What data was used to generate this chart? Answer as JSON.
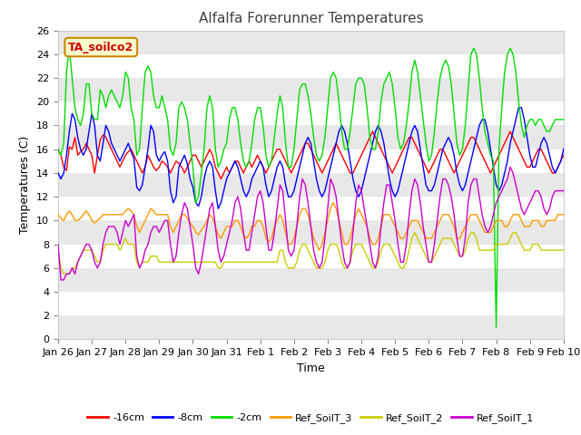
{
  "title": "Alfalfa Forerunner Temperatures",
  "xlabel": "Time",
  "ylabel": "Temperatures (C)",
  "annotation": "TA_soilco2",
  "ylim": [
    0,
    26
  ],
  "yticks": [
    0,
    2,
    4,
    6,
    8,
    10,
    12,
    14,
    16,
    18,
    20,
    22,
    24,
    26
  ],
  "series": {
    "neg16cm": {
      "label": "-16cm",
      "color": "#ff0000"
    },
    "neg8cm": {
      "label": "-8cm",
      "color": "#0000ff"
    },
    "neg2cm": {
      "label": "-2cm",
      "color": "#00dd00"
    },
    "ref3": {
      "label": "Ref_SoilT_3",
      "color": "#ff9900"
    },
    "ref2": {
      "label": "Ref_SoilT_2",
      "color": "#cccc00"
    },
    "ref1": {
      "label": "Ref_SoilT_1",
      "color": "#cc00cc"
    }
  },
  "xlabels": [
    "Jan 26",
    "Jan 27",
    "Jan 28",
    "Jan 29",
    "Jan 30",
    "Jan 31",
    "Feb 1",
    "Feb 2",
    "Feb 3",
    "Feb 4",
    "Feb 5",
    "Feb 6",
    "Feb 7",
    "Feb 8",
    "Feb 9",
    "Feb 10"
  ],
  "neg16cm": [
    16.0,
    15.5,
    14.5,
    14.2,
    16.2,
    16.0,
    17.0,
    15.5,
    15.8,
    16.0,
    16.5,
    16.0,
    15.5,
    14.0,
    15.5,
    16.8,
    17.2,
    17.0,
    16.5,
    16.0,
    15.5,
    15.0,
    14.5,
    15.0,
    15.5,
    15.8,
    16.0,
    15.5,
    15.0,
    14.5,
    14.0,
    14.5,
    15.5,
    15.0,
    14.5,
    14.2,
    14.5,
    15.0,
    14.8,
    14.5,
    14.0,
    14.5,
    15.0,
    14.8,
    14.5,
    14.0,
    14.5,
    15.0,
    15.5,
    15.5,
    15.0,
    14.5,
    15.0,
    15.5,
    16.0,
    15.5,
    14.5,
    14.0,
    13.5,
    14.0,
    14.5,
    14.0,
    14.5,
    15.0,
    15.0,
    14.5,
    14.0,
    14.5,
    15.0,
    14.5,
    15.0,
    15.5,
    15.0,
    14.5,
    14.0,
    14.5,
    15.0,
    15.5,
    16.0,
    16.0,
    15.5,
    15.0,
    14.5,
    14.0,
    14.5,
    15.0,
    15.5,
    16.0,
    16.5,
    16.5,
    16.0,
    15.5,
    15.0,
    14.5,
    14.0,
    14.5,
    15.0,
    15.5,
    16.0,
    16.5,
    16.0,
    15.5,
    15.0,
    14.5,
    14.0,
    14.0,
    14.5,
    15.0,
    15.5,
    16.0,
    16.5,
    17.0,
    17.5,
    17.0,
    16.5,
    16.0,
    15.5,
    15.0,
    14.5,
    14.0,
    14.5,
    15.0,
    15.5,
    16.0,
    16.5,
    17.0,
    17.0,
    16.5,
    16.0,
    15.5,
    15.0,
    14.5,
    14.0,
    14.5,
    15.0,
    15.5,
    16.0,
    16.0,
    15.5,
    15.0,
    14.5,
    14.0,
    14.5,
    15.0,
    15.5,
    16.0,
    16.5,
    17.0,
    17.0,
    16.5,
    16.0,
    15.5,
    15.0,
    14.5,
    14.0,
    14.5,
    15.0,
    15.5,
    16.0,
    16.5,
    17.0,
    17.5,
    17.0,
    16.5,
    16.0,
    15.5,
    15.0,
    14.5,
    14.5,
    15.0,
    15.5,
    16.0,
    16.0,
    15.5,
    15.0,
    14.5,
    14.0,
    14.0,
    14.5,
    15.0,
    15.5,
    16.0,
    16.0,
    15.5,
    15.0,
    14.5,
    14.0
  ],
  "neg8cm": [
    14.0,
    13.5,
    14.0,
    15.5,
    17.5,
    19.0,
    18.5,
    17.0,
    16.0,
    15.5,
    16.0,
    17.5,
    19.0,
    18.0,
    15.5,
    15.0,
    16.5,
    18.0,
    17.5,
    16.5,
    16.0,
    15.5,
    15.0,
    15.5,
    16.0,
    16.5,
    15.8,
    15.2,
    12.8,
    12.5,
    13.0,
    14.5,
    16.0,
    18.0,
    17.5,
    15.5,
    15.0,
    15.5,
    15.8,
    15.0,
    12.5,
    11.5,
    12.0,
    14.5,
    15.0,
    15.5,
    14.8,
    13.5,
    12.8,
    11.5,
    11.2,
    12.0,
    13.5,
    14.5,
    15.0,
    14.5,
    12.5,
    11.0,
    11.5,
    12.5,
    13.5,
    14.0,
    14.5,
    15.0,
    14.5,
    13.5,
    12.5,
    12.0,
    12.5,
    13.5,
    14.0,
    14.5,
    15.0,
    14.5,
    13.0,
    12.0,
    12.5,
    13.5,
    14.5,
    15.0,
    14.5,
    13.0,
    12.0,
    12.0,
    12.5,
    13.5,
    14.5,
    15.5,
    16.5,
    17.0,
    16.5,
    15.0,
    13.5,
    12.5,
    12.0,
    12.5,
    13.5,
    14.5,
    15.5,
    16.5,
    17.5,
    18.0,
    17.5,
    16.5,
    15.0,
    13.5,
    12.5,
    12.0,
    12.5,
    13.5,
    14.5,
    15.5,
    16.5,
    17.5,
    18.0,
    17.5,
    16.5,
    15.0,
    13.5,
    12.5,
    12.0,
    12.5,
    13.5,
    14.5,
    15.5,
    16.5,
    17.5,
    18.0,
    17.5,
    16.0,
    14.5,
    13.0,
    12.5,
    12.5,
    13.0,
    14.0,
    15.0,
    16.0,
    16.5,
    17.0,
    16.5,
    15.5,
    14.0,
    13.0,
    12.5,
    13.0,
    14.0,
    15.0,
    16.0,
    17.0,
    18.0,
    18.5,
    18.5,
    17.5,
    16.0,
    14.5,
    13.0,
    12.5,
    13.0,
    14.0,
    15.0,
    16.5,
    17.5,
    18.5,
    19.5,
    19.5,
    18.5,
    17.0,
    15.5,
    14.5,
    14.5,
    15.5,
    16.5,
    17.0,
    16.5,
    15.5,
    14.5,
    14.0,
    14.5,
    15.0,
    16.0,
    16.5,
    16.5,
    16.0,
    15.0,
    14.5,
    15.0
  ],
  "neg2cm": [
    16.0,
    15.5,
    16.5,
    22.5,
    24.5,
    22.0,
    19.5,
    18.5,
    18.0,
    19.0,
    21.5,
    21.5,
    19.0,
    18.5,
    18.5,
    21.0,
    20.5,
    19.5,
    20.5,
    21.0,
    20.5,
    20.0,
    19.5,
    20.5,
    22.5,
    22.0,
    19.5,
    18.5,
    15.5,
    16.0,
    19.5,
    22.5,
    23.0,
    22.5,
    20.5,
    19.5,
    19.5,
    20.5,
    19.5,
    18.5,
    16.0,
    15.5,
    16.5,
    19.5,
    20.0,
    19.5,
    18.5,
    16.5,
    14.5,
    11.5,
    12.0,
    14.0,
    16.0,
    19.5,
    20.5,
    19.5,
    16.0,
    14.5,
    15.0,
    16.0,
    16.5,
    18.5,
    19.5,
    19.5,
    18.5,
    16.5,
    15.0,
    14.5,
    15.0,
    16.5,
    18.5,
    19.5,
    19.5,
    18.0,
    15.5,
    14.5,
    15.0,
    17.0,
    19.0,
    20.5,
    19.5,
    16.5,
    14.5,
    14.5,
    16.0,
    18.5,
    21.0,
    21.5,
    21.5,
    20.5,
    19.0,
    17.0,
    15.5,
    15.0,
    15.5,
    17.0,
    19.5,
    22.0,
    22.5,
    22.0,
    20.0,
    17.5,
    16.0,
    16.0,
    17.5,
    19.5,
    21.5,
    22.0,
    22.0,
    21.5,
    19.5,
    17.0,
    16.0,
    16.0,
    17.5,
    20.0,
    21.5,
    22.0,
    22.5,
    21.5,
    19.5,
    17.0,
    16.0,
    16.5,
    18.0,
    20.0,
    22.5,
    23.5,
    22.5,
    20.5,
    18.5,
    16.5,
    15.0,
    15.5,
    17.5,
    20.0,
    22.0,
    23.0,
    23.5,
    23.0,
    21.5,
    19.0,
    16.5,
    15.5,
    16.0,
    18.0,
    21.0,
    24.0,
    24.5,
    24.0,
    22.0,
    19.5,
    17.5,
    16.5,
    15.5,
    15.0,
    1.0,
    16.0,
    19.5,
    22.5,
    24.0,
    24.5,
    24.0,
    22.5,
    20.0,
    18.0,
    17.0,
    18.0,
    18.5,
    18.5,
    18.0,
    18.5,
    18.5,
    18.0,
    17.5,
    17.5,
    18.0,
    18.5,
    18.5,
    18.5,
    18.5,
    18.5,
    18.5,
    18.5,
    15.0,
    15.0,
    16.0
  ],
  "ref3": [
    10.5,
    10.2,
    10.0,
    10.5,
    10.8,
    10.5,
    10.0,
    10.0,
    10.2,
    10.5,
    10.8,
    10.5,
    10.0,
    9.8,
    10.0,
    10.2,
    10.5,
    10.5,
    10.5,
    10.5,
    10.5,
    10.5,
    10.5,
    10.5,
    10.8,
    11.0,
    10.8,
    10.5,
    9.5,
    9.0,
    9.5,
    10.0,
    10.5,
    11.0,
    10.8,
    10.5,
    10.5,
    10.5,
    10.5,
    10.5,
    9.5,
    9.0,
    9.5,
    10.0,
    10.5,
    10.5,
    10.2,
    9.8,
    9.5,
    9.0,
    8.8,
    9.2,
    9.5,
    10.0,
    10.5,
    10.2,
    9.5,
    8.8,
    8.5,
    9.0,
    9.5,
    9.5,
    9.5,
    10.0,
    10.0,
    9.5,
    8.8,
    8.5,
    8.8,
    9.5,
    9.5,
    10.0,
    10.0,
    9.5,
    8.5,
    8.2,
    8.5,
    9.5,
    10.0,
    10.5,
    10.0,
    9.0,
    8.0,
    8.0,
    8.5,
    9.5,
    10.5,
    11.0,
    11.0,
    10.5,
    9.5,
    8.5,
    8.0,
    7.5,
    8.0,
    9.0,
    10.0,
    11.0,
    11.5,
    11.0,
    10.0,
    9.0,
    8.0,
    8.0,
    8.5,
    9.5,
    10.5,
    11.0,
    10.5,
    10.0,
    9.5,
    8.5,
    8.0,
    8.0,
    8.5,
    9.5,
    10.5,
    10.5,
    10.5,
    10.0,
    9.5,
    9.0,
    8.5,
    8.5,
    9.0,
    9.5,
    10.0,
    10.0,
    10.0,
    9.5,
    9.0,
    8.5,
    8.5,
    8.5,
    9.0,
    9.5,
    10.0,
    10.5,
    10.5,
    10.5,
    10.0,
    9.5,
    8.5,
    8.5,
    9.0,
    9.5,
    10.0,
    10.5,
    10.5,
    10.5,
    10.0,
    9.5,
    9.0,
    9.0,
    9.0,
    9.5,
    10.0,
    10.0,
    10.0,
    9.5,
    9.5,
    10.0,
    10.5,
    10.5,
    10.5,
    10.0,
    9.5,
    9.5,
    9.5,
    10.0,
    10.0,
    10.0,
    9.5,
    9.5,
    10.0,
    10.0,
    10.0,
    10.0,
    10.5,
    10.5,
    10.5,
    10.5,
    10.0,
    9.5,
    9.5,
    9.5,
    9.5
  ],
  "ref2": [
    7.5,
    6.0,
    5.5,
    5.5,
    5.5,
    6.0,
    6.0,
    6.5,
    7.0,
    7.5,
    7.5,
    7.5,
    7.5,
    7.0,
    6.5,
    6.5,
    7.5,
    8.0,
    8.0,
    8.0,
    8.0,
    8.0,
    7.5,
    8.0,
    8.5,
    8.0,
    8.0,
    8.0,
    6.5,
    6.0,
    6.5,
    6.5,
    6.5,
    7.0,
    7.0,
    7.0,
    6.5,
    6.5,
    6.5,
    6.5,
    6.5,
    6.5,
    6.5,
    6.5,
    6.5,
    6.5,
    6.5,
    6.5,
    6.5,
    6.5,
    6.5,
    6.5,
    6.5,
    6.5,
    6.5,
    6.5,
    6.5,
    6.0,
    6.0,
    6.5,
    6.5,
    6.5,
    6.5,
    6.5,
    6.5,
    6.5,
    6.5,
    6.5,
    6.5,
    6.5,
    6.5,
    6.5,
    6.5,
    6.5,
    6.5,
    6.5,
    6.5,
    6.5,
    6.5,
    7.5,
    7.5,
    6.5,
    6.0,
    6.0,
    6.0,
    6.5,
    7.5,
    8.0,
    8.0,
    7.5,
    7.0,
    6.5,
    6.0,
    6.0,
    6.0,
    6.5,
    7.5,
    8.0,
    8.0,
    8.0,
    7.5,
    6.5,
    6.0,
    6.0,
    6.5,
    7.5,
    8.0,
    8.0,
    8.0,
    7.5,
    7.0,
    6.5,
    6.0,
    6.0,
    6.5,
    7.5,
    8.0,
    8.0,
    8.0,
    7.5,
    7.0,
    6.5,
    6.0,
    6.0,
    6.5,
    7.5,
    8.5,
    9.0,
    8.5,
    8.0,
    7.5,
    7.0,
    6.5,
    6.5,
    7.0,
    7.5,
    8.0,
    8.5,
    8.5,
    8.5,
    8.5,
    8.0,
    7.5,
    7.0,
    7.0,
    7.5,
    8.5,
    9.0,
    9.0,
    8.5,
    7.5,
    7.5,
    7.5,
    7.5,
    7.5,
    7.5,
    8.0,
    8.0,
    8.0,
    8.0,
    8.0,
    8.5,
    9.0,
    9.0,
    8.5,
    8.0,
    7.5,
    7.5,
    7.5,
    8.0,
    8.0,
    8.0,
    7.5,
    7.5,
    7.5,
    7.5,
    7.5,
    7.5,
    7.5,
    7.5,
    7.5,
    7.5,
    7.5,
    7.5,
    7.5,
    7.5,
    7.5
  ],
  "ref1": [
    8.0,
    5.0,
    5.0,
    5.5,
    5.5,
    6.0,
    5.5,
    6.5,
    7.0,
    7.5,
    8.0,
    8.0,
    7.5,
    6.5,
    6.0,
    6.5,
    8.0,
    9.0,
    9.5,
    9.5,
    9.5,
    9.0,
    8.0,
    9.0,
    10.0,
    9.5,
    10.0,
    10.5,
    7.0,
    6.0,
    6.5,
    7.5,
    8.0,
    9.0,
    9.5,
    9.5,
    9.0,
    9.5,
    10.0,
    10.0,
    8.0,
    6.5,
    7.0,
    9.0,
    10.5,
    11.5,
    11.0,
    9.5,
    8.0,
    6.0,
    5.5,
    6.5,
    8.0,
    9.5,
    11.0,
    11.5,
    9.5,
    7.5,
    6.5,
    7.0,
    8.0,
    9.0,
    10.0,
    11.5,
    12.0,
    11.0,
    9.0,
    7.5,
    7.5,
    9.0,
    10.5,
    12.0,
    12.5,
    11.5,
    9.5,
    7.5,
    7.5,
    9.0,
    11.0,
    13.0,
    12.5,
    10.0,
    7.5,
    7.0,
    7.5,
    9.5,
    12.0,
    13.5,
    13.0,
    11.5,
    9.5,
    7.5,
    6.5,
    6.0,
    6.5,
    8.5,
    11.0,
    13.5,
    13.0,
    12.0,
    10.0,
    8.0,
    6.5,
    6.0,
    6.5,
    9.0,
    11.5,
    13.0,
    12.5,
    11.0,
    9.5,
    8.0,
    6.5,
    6.0,
    7.0,
    9.5,
    11.5,
    13.0,
    13.0,
    11.5,
    10.0,
    8.0,
    6.5,
    6.5,
    8.0,
    10.5,
    12.5,
    13.5,
    13.0,
    11.5,
    9.5,
    8.0,
    6.5,
    6.5,
    8.0,
    10.0,
    12.0,
    13.5,
    13.5,
    13.0,
    12.0,
    10.5,
    8.5,
    7.0,
    7.0,
    8.5,
    11.5,
    13.0,
    13.5,
    13.5,
    12.0,
    10.5,
    9.5,
    9.0,
    9.5,
    10.5,
    11.5,
    12.0,
    12.5,
    13.0,
    13.5,
    14.5,
    14.0,
    13.0,
    12.0,
    11.0,
    10.5,
    11.0,
    11.5,
    12.0,
    12.5,
    12.5,
    12.0,
    11.0,
    10.5,
    11.0,
    12.0,
    12.5,
    12.5,
    12.5,
    12.5,
    13.0,
    13.0,
    12.5,
    12.5,
    12.5,
    12.0
  ]
}
